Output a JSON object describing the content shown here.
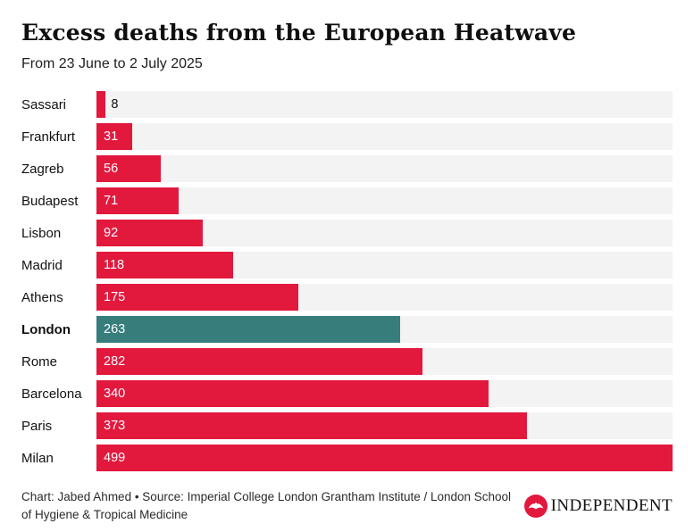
{
  "header": {
    "title": "Excess deaths from the European Heatwave",
    "subtitle": "From 23 June to 2 July 2025"
  },
  "chart_data": {
    "type": "bar",
    "orientation": "horizontal",
    "title": "Excess deaths from the European Heatwave",
    "subtitle": "From 23 June to 2 July 2025",
    "categories": [
      "Sassari",
      "Frankfurt",
      "Zagreb",
      "Budapest",
      "Lisbon",
      "Madrid",
      "Athens",
      "London",
      "Rome",
      "Barcelona",
      "Paris",
      "Milan"
    ],
    "values": [
      8,
      31,
      56,
      71,
      92,
      118,
      175,
      263,
      282,
      340,
      373,
      499
    ],
    "xlim": [
      0,
      499
    ],
    "grid": false,
    "legend": "none",
    "highlight_category": "London",
    "bar_color": "#e2183d",
    "highlight_color": "#367d7c",
    "track_color": "#f3f3f3",
    "value_label_inside_color": "#ffffff",
    "value_label_outside_color": "#111111"
  },
  "footer": {
    "credit": "Chart: Jabed Ahmed • Source: Imperial College London Grantham Institute / London School of Hygiene & Tropical Medicine",
    "logo_text": "INDEPENDENT"
  }
}
